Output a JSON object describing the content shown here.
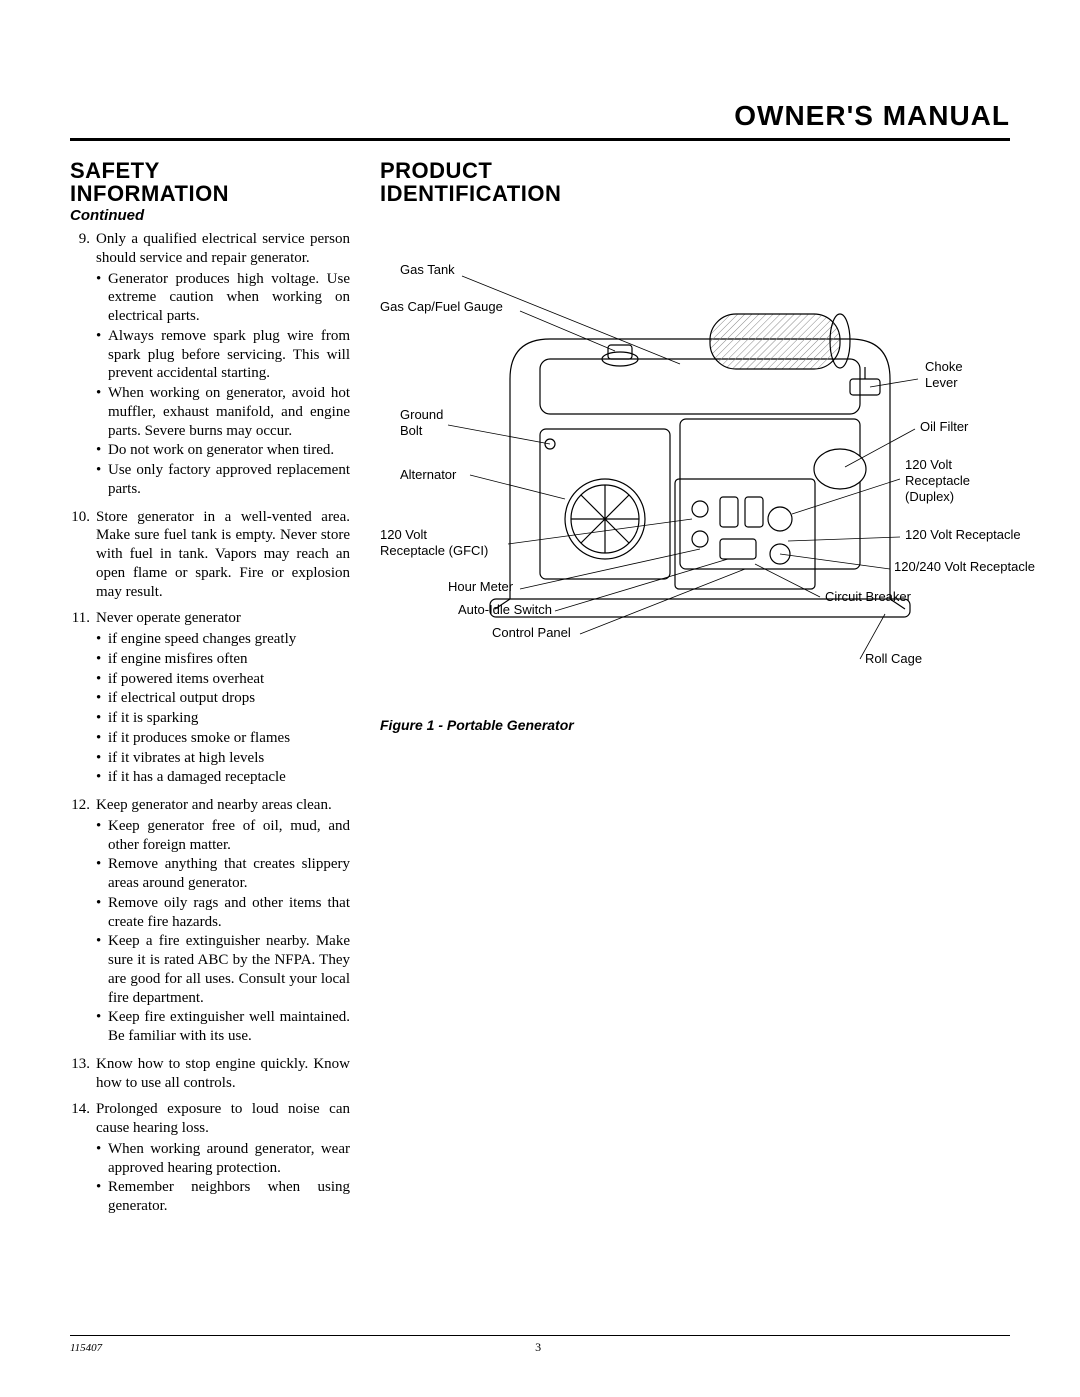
{
  "header": {
    "title": "OWNER'S MANUAL"
  },
  "left": {
    "heading_line1": "SAFETY",
    "heading_line2": "INFORMATION",
    "continued": "Continued",
    "items": [
      {
        "num": "9.",
        "text": "Only a qualified electrical service person should service and repair generator.",
        "sub": [
          "Generator produces high voltage. Use extreme caution when working on electrical parts.",
          "Always remove spark plug wire from spark plug before servicing. This will prevent accidental starting.",
          "When working on generator, avoid hot muffler, exhaust manifold, and engine parts. Severe burns may occur.",
          "Do not work on generator when tired.",
          "Use only factory approved replacement parts."
        ]
      },
      {
        "num": "10.",
        "text": "Store generator in a well-vented area. Make sure fuel tank is empty. Never store with fuel in tank. Vapors may reach an open flame or spark. Fire or explosion may result.",
        "sub": []
      },
      {
        "num": "11.",
        "text": "Never operate generator",
        "sub": [
          "if engine speed changes greatly",
          "if engine misfires often",
          "if powered items overheat",
          "if electrical output drops",
          "if it is sparking",
          "if it produces smoke or flames",
          "if it vibrates at high levels",
          "if it has a damaged receptacle"
        ]
      },
      {
        "num": "12.",
        "text": "Keep generator and nearby areas clean.",
        "sub": [
          "Keep generator free of oil, mud, and other foreign matter.",
          "Remove anything that creates slippery areas around generator.",
          "Remove oily rags and other items that create fire hazards.",
          "Keep a fire extinguisher nearby. Make sure it is rated ABC by the NFPA. They are good for all uses. Consult your local fire department.",
          "Keep fire extinguisher well maintained. Be familiar with its use."
        ]
      },
      {
        "num": "13.",
        "text": "Know how to stop engine quickly. Know how to use all controls.",
        "sub": []
      },
      {
        "num": "14.",
        "text": "Prolonged exposure to loud noise can cause hearing loss.",
        "sub": [
          "When working around generator, wear approved hearing protection.",
          "Remember neighbors when using generator."
        ]
      }
    ]
  },
  "right": {
    "heading_line1": "PRODUCT",
    "heading_line2": "IDENTIFICATION",
    "figure_caption": "Figure 1 - Portable Generator",
    "labels": {
      "gas_tank": "Gas Tank",
      "gas_cap": "Gas Cap/Fuel Gauge",
      "ground_bolt_l1": "Ground",
      "ground_bolt_l2": "Bolt",
      "alternator": "Alternator",
      "recept_gfci_l1": "120 Volt",
      "recept_gfci_l2": "Receptacle (GFCI)",
      "hour_meter": "Hour Meter",
      "auto_idle": "Auto-Idle Switch",
      "control_panel": "Control Panel",
      "choke_l1": "Choke",
      "choke_l2": "Lever",
      "oil_filter": "Oil Filter",
      "recept_duplex_l1": "120 Volt",
      "recept_duplex_l2": "Receptacle",
      "recept_duplex_l3": "(Duplex)",
      "recept_120": "120 Volt Receptacle",
      "recept_120_240": "120/240 Volt Receptacle",
      "circuit_breaker": "Circuit Breaker",
      "roll_cage": "Roll Cage"
    },
    "diagram": {
      "stroke_color": "#000000",
      "stroke_width": 1,
      "hatch_color": "#888888",
      "background": "#ffffff"
    }
  },
  "footer": {
    "doc_id": "115407",
    "page": "3"
  }
}
